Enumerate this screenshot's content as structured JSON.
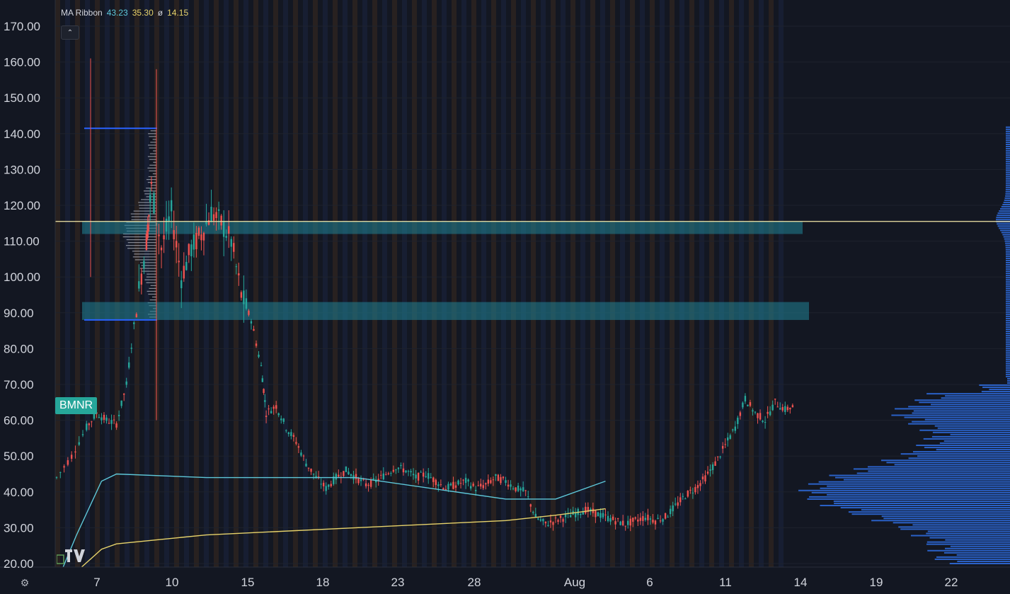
{
  "legend": {
    "name": "MA Ribbon",
    "v1": "43.23",
    "v2": "35.30",
    "sep": "ø",
    "v3": "14.15"
  },
  "ticker_label": "BMNR",
  "colors": {
    "bg": "#131722",
    "up": "#26a69a",
    "down": "#ef5350",
    "ma_fast": "#5ec8d9",
    "ma_slow": "#e6d26a",
    "zone": "#1f7a8c",
    "level_line": "#f5e9a8",
    "range_line": "#2962ff",
    "profile": "#2f6fe4",
    "stripe_warm": "#3a2a1f",
    "stripe_cool": "#1b2440"
  },
  "chart_data": {
    "type": "candlestick",
    "ylim": [
      20,
      170
    ],
    "y_ticks": [
      "170.00",
      "160.00",
      "150.00",
      "140.00",
      "130.00",
      "120.00",
      "110.00",
      "100.00",
      "90.00",
      "80.00",
      "70.00",
      "60.00",
      "50.00",
      "40.00",
      "30.00",
      "20.00"
    ],
    "x_ticks": [
      "7",
      "10",
      "15",
      "18",
      "23",
      "28",
      "Aug",
      "6",
      "11",
      "14",
      "19",
      "22"
    ],
    "series": [
      {
        "kind": "price",
        "segments": [
          [
            0,
            44
          ],
          [
            3,
            50
          ],
          [
            6,
            58
          ],
          [
            8,
            62
          ],
          [
            10,
            60
          ],
          [
            12,
            59
          ],
          [
            14,
            70
          ],
          [
            16,
            92
          ],
          [
            18,
            110
          ],
          [
            19,
            125
          ],
          [
            21,
            108
          ],
          [
            23,
            118
          ],
          [
            25,
            100
          ],
          [
            27,
            108
          ],
          [
            29,
            112
          ],
          [
            31,
            118
          ],
          [
            33,
            115
          ],
          [
            35,
            110
          ],
          [
            37,
            95
          ],
          [
            39,
            88
          ],
          [
            41,
            75
          ],
          [
            42,
            62
          ],
          [
            44,
            64
          ],
          [
            46,
            58
          ],
          [
            48,
            54
          ],
          [
            50,
            48
          ],
          [
            52,
            44
          ],
          [
            54,
            41
          ],
          [
            56,
            44
          ],
          [
            58,
            46
          ],
          [
            60,
            44
          ],
          [
            62,
            42
          ],
          [
            64,
            43
          ],
          [
            66,
            45
          ],
          [
            68,
            47
          ],
          [
            70,
            46
          ],
          [
            72,
            44
          ],
          [
            74,
            45
          ],
          [
            76,
            43
          ],
          [
            78,
            41
          ],
          [
            80,
            42
          ],
          [
            82,
            43
          ],
          [
            84,
            41
          ],
          [
            86,
            42
          ],
          [
            88,
            44
          ],
          [
            90,
            43
          ],
          [
            92,
            41
          ],
          [
            94,
            40
          ],
          [
            96,
            33
          ],
          [
            98,
            31
          ],
          [
            100,
            32
          ],
          [
            102,
            33
          ],
          [
            104,
            34
          ],
          [
            106,
            35
          ],
          [
            108,
            34
          ],
          [
            110,
            33
          ],
          [
            112,
            32
          ],
          [
            114,
            31
          ],
          [
            116,
            32
          ],
          [
            118,
            33
          ],
          [
            120,
            32
          ],
          [
            122,
            33
          ],
          [
            124,
            36
          ],
          [
            126,
            39
          ],
          [
            128,
            41
          ],
          [
            130,
            44
          ],
          [
            132,
            48
          ],
          [
            134,
            53
          ],
          [
            136,
            58
          ],
          [
            138,
            66
          ],
          [
            140,
            62
          ],
          [
            142,
            60
          ],
          [
            144,
            65
          ],
          [
            146,
            63
          ],
          [
            148,
            64
          ]
        ]
      },
      {
        "kind": "ma_fast",
        "points": [
          [
            1,
            18
          ],
          [
            4,
            28
          ],
          [
            9,
            43
          ],
          [
            12,
            45
          ],
          [
            30,
            44
          ],
          [
            60,
            44
          ],
          [
            90,
            38
          ],
          [
            100,
            38
          ],
          [
            110,
            43
          ]
        ]
      },
      {
        "kind": "ma_slow",
        "points": [
          [
            1,
            14
          ],
          [
            9,
            24
          ],
          [
            12,
            25.5
          ],
          [
            30,
            28
          ],
          [
            60,
            30
          ],
          [
            90,
            32
          ],
          [
            100,
            33.5
          ],
          [
            110,
            35.3
          ]
        ]
      }
    ],
    "zones": [
      {
        "label": "",
        "low": 112,
        "high": 115.5
      },
      {
        "label": "",
        "low": 88,
        "high": 93
      }
    ],
    "level_line": 115.5,
    "range_box": {
      "high": 141.5,
      "low": 88
    }
  }
}
